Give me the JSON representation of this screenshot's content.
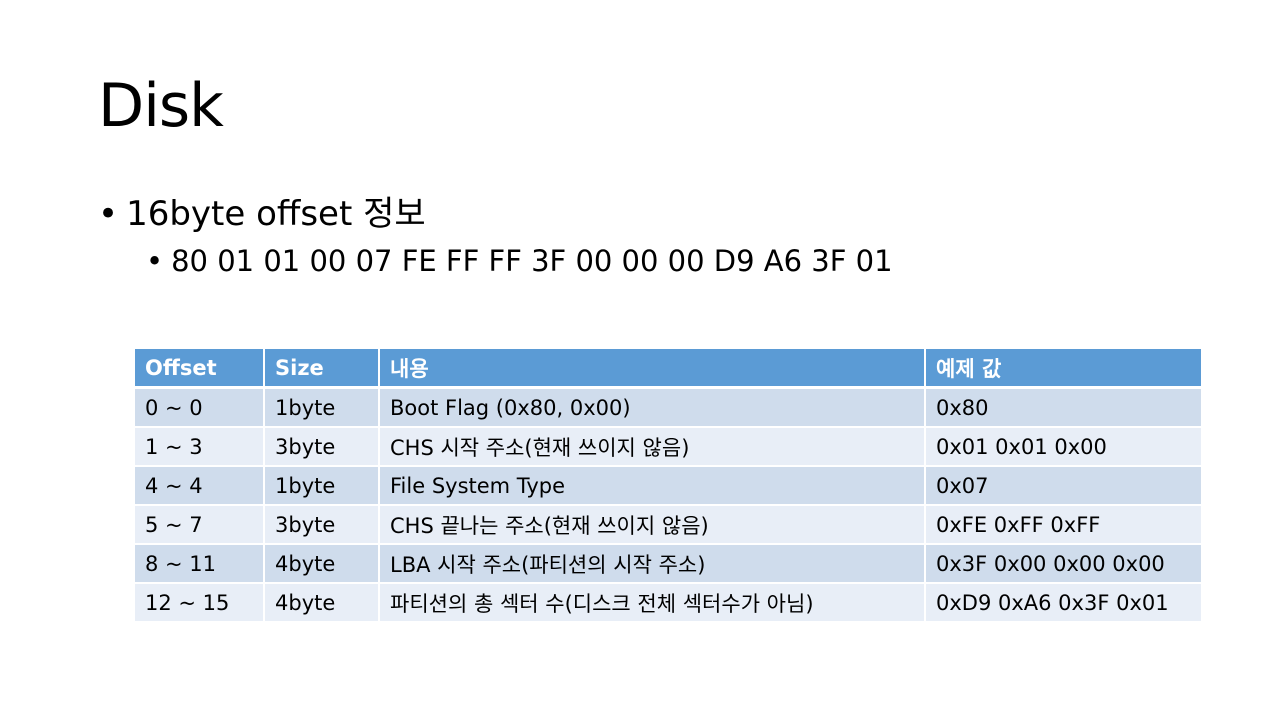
{
  "slide": {
    "title": "Disk",
    "bullet1": "16byte offset 정보",
    "bullet2": "80 01 01 00 07 FE FF FF 3F 00 00 00 D9 A6 3F 01",
    "bullet_glyph": "•"
  },
  "table": {
    "headers": [
      "Offset",
      "Size",
      "내용",
      "예제 값"
    ],
    "rows": [
      [
        "0 ~ 0",
        "1byte",
        "Boot Flag (0x80, 0x00)",
        "0x80"
      ],
      [
        "1 ~ 3",
        "3byte",
        "CHS 시작 주소(현재 쓰이지 않음)",
        "0x01 0x01 0x00"
      ],
      [
        "4 ~ 4",
        "1byte",
        "File System Type",
        "0x07"
      ],
      [
        "5 ~ 7",
        "3byte",
        "CHS 끝나는 주소(현재 쓰이지 않음)",
        "0xFE 0xFF 0xFF"
      ],
      [
        "8 ~ 11",
        "4byte",
        "LBA 시작 주소(파티션의 시작 주소)",
        "0x3F 0x00 0x00 0x00"
      ],
      [
        "12 ~ 15",
        "4byte",
        "파티션의 총 섹터 수(디스크 전체 섹터수가 아님)",
        "0xD9 0xA6 0x3F 0x01"
      ]
    ]
  },
  "colors": {
    "header_bg": "#5b9bd5",
    "row_dark": "#cfdcec",
    "row_light": "#e8eef7"
  }
}
